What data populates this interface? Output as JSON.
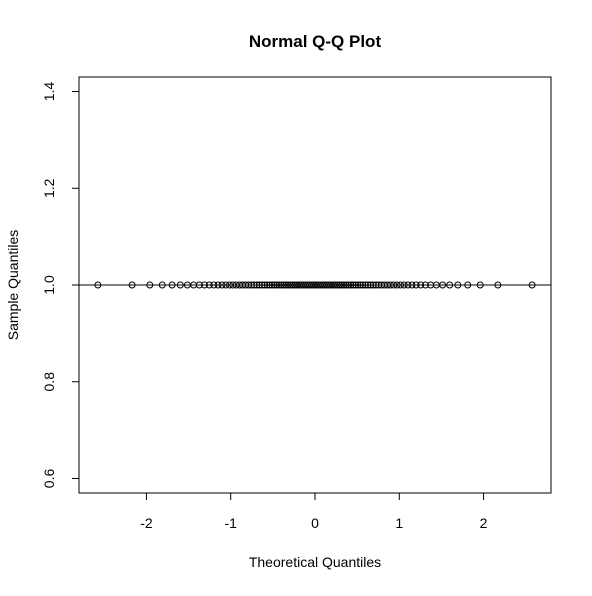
{
  "chart_data": {
    "type": "scatter",
    "title": "Normal Q-Q Plot",
    "xlabel": "Theoretical Quantiles",
    "ylabel": "Sample Quantiles",
    "xlim": [
      -2.8,
      2.8
    ],
    "ylim": [
      0.57,
      1.43
    ],
    "xticks": [
      -2,
      -1,
      0,
      1,
      2
    ],
    "xtick_labels": [
      "-2",
      "-1",
      "0",
      "1",
      "2"
    ],
    "yticks": [
      0.6,
      0.8,
      1.0,
      1.2,
      1.4
    ],
    "ytick_labels": [
      "0.6",
      "0.8",
      "1.0",
      "1.2",
      "1.4"
    ],
    "grid": false,
    "reference_line": {
      "slope": 0,
      "intercept": 1.0
    },
    "series": [
      {
        "x": [
          -2.576,
          -2.17,
          -1.96,
          -1.812,
          -1.695,
          -1.598,
          -1.514,
          -1.44,
          -1.372,
          -1.311,
          -1.254,
          -1.2,
          -1.15,
          -1.103,
          -1.058,
          -1.015,
          -0.974,
          -0.935,
          -0.896,
          -0.86,
          -0.824,
          -0.789,
          -0.755,
          -0.722,
          -0.69,
          -0.659,
          -0.628,
          -0.598,
          -0.568,
          -0.539,
          -0.51,
          -0.482,
          -0.454,
          -0.426,
          -0.399,
          -0.372,
          -0.345,
          -0.319,
          -0.292,
          -0.266,
          -0.24,
          -0.215,
          -0.189,
          -0.164,
          -0.138,
          -0.113,
          -0.088,
          -0.063,
          -0.038,
          -0.013,
          0.013,
          0.038,
          0.063,
          0.088,
          0.113,
          0.138,
          0.164,
          0.189,
          0.215,
          0.24,
          0.266,
          0.292,
          0.319,
          0.345,
          0.372,
          0.399,
          0.426,
          0.454,
          0.482,
          0.51,
          0.539,
          0.568,
          0.598,
          0.628,
          0.659,
          0.69,
          0.722,
          0.755,
          0.789,
          0.824,
          0.86,
          0.896,
          0.935,
          0.974,
          1.015,
          1.058,
          1.103,
          1.15,
          1.2,
          1.254,
          1.311,
          1.372,
          1.44,
          1.514,
          1.598,
          1.695,
          1.812,
          1.96,
          2.17,
          2.576
        ],
        "y": [
          1,
          1,
          1,
          1,
          1,
          1,
          1,
          1,
          1,
          1,
          1,
          1,
          1,
          1,
          1,
          1,
          1,
          1,
          1,
          1,
          1,
          1,
          1,
          1,
          1,
          1,
          1,
          1,
          1,
          1,
          1,
          1,
          1,
          1,
          1,
          1,
          1,
          1,
          1,
          1,
          1,
          1,
          1,
          1,
          1,
          1,
          1,
          1,
          1,
          1,
          1,
          1,
          1,
          1,
          1,
          1,
          1,
          1,
          1,
          1,
          1,
          1,
          1,
          1,
          1,
          1,
          1,
          1,
          1,
          1,
          1,
          1,
          1,
          1,
          1,
          1,
          1,
          1,
          1,
          1,
          1,
          1,
          1,
          1,
          1,
          1,
          1,
          1,
          1,
          1,
          1,
          1,
          1,
          1,
          1,
          1,
          1,
          1,
          1,
          1
        ]
      }
    ]
  }
}
